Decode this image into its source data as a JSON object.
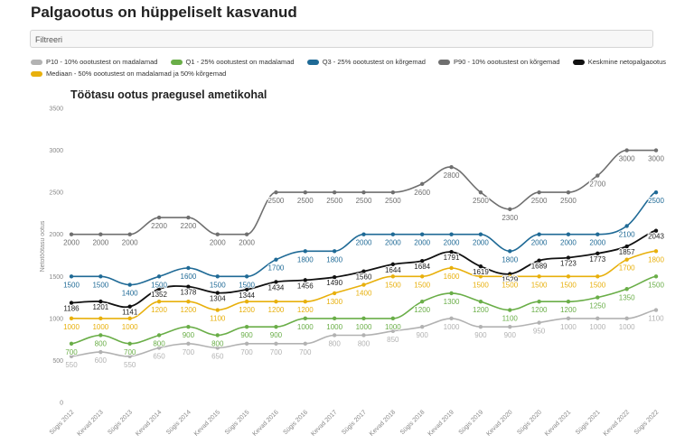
{
  "page": {
    "title": "Palgaootus on hüppeliselt kasvanud"
  },
  "filter": {
    "placeholder": "Filtreeri"
  },
  "chart_data": {
    "type": "line",
    "title": "Töötasu ootus praegusel ametikohal",
    "xlabel": "",
    "ylabel": "Netotöötasu ootus",
    "ylim": [
      0,
      3500
    ],
    "yticks": [
      0,
      500,
      1000,
      1500,
      2000,
      2500,
      3000,
      3500
    ],
    "grid": false,
    "legend_position": "top",
    "categories": [
      "Sügis 2012",
      "Kevad 2013",
      "Sügis 2013",
      "Kevad 2014",
      "Sügis 2014",
      "Kevad 2015",
      "Sügis 2015",
      "Kevad 2016",
      "Sügis 2016",
      "Kevad 2017",
      "Sügis 2017",
      "Kevad 2018",
      "Sügis 2018",
      "Kevad 2019",
      "Sügis 2019",
      "Kevad 2020",
      "Sügis 2020",
      "Kevad 2021",
      "Sügis 2021",
      "Kevad 2022",
      "Sügis 2022"
    ],
    "series": [
      {
        "name": "P10 - 10% oootustest on madalamad",
        "color": "#b2b2b2",
        "labels_below": true,
        "values": [
          550,
          600,
          550,
          650,
          700,
          650,
          700,
          700,
          700,
          800,
          800,
          850,
          900,
          1000,
          900,
          900,
          950,
          1000,
          1000,
          1000,
          1100
        ]
      },
      {
        "name": "Q1 - 25% oootustest on madalamad",
        "color": "#6aae48",
        "labels_below": true,
        "values": [
          700,
          800,
          700,
          800,
          900,
          800,
          900,
          900,
          1000,
          1000,
          1000,
          1000,
          1200,
          1300,
          1200,
          1100,
          1200,
          1200,
          1250,
          1350,
          1500
        ]
      },
      {
        "name": "Q3 - 25% oootustest on kõrgemad",
        "color": "#1f6a96",
        "labels_below": true,
        "values": [
          1500,
          1500,
          1400,
          1500,
          1600,
          1500,
          1500,
          1700,
          1800,
          1800,
          2000,
          2000,
          2000,
          2000,
          2000,
          1800,
          2000,
          2000,
          2000,
          2100,
          2500
        ]
      },
      {
        "name": "P90 - 10% oootustest on kõrgemad",
        "color": "#6f6f6f",
        "labels_below": true,
        "values": [
          2000,
          2000,
          2000,
          2200,
          2200,
          2000,
          2000,
          2500,
          2500,
          2500,
          2500,
          2500,
          2600,
          2800,
          2500,
          2300,
          2500,
          2500,
          2700,
          3000,
          3000
        ]
      },
      {
        "name": "Keskmine netopalgaootus",
        "color": "#111111",
        "labels_below": false,
        "values": [
          1186,
          1201,
          1141,
          1352,
          1378,
          1304,
          1344,
          1434,
          1456,
          1490,
          1560,
          1644,
          1684,
          1791,
          1619,
          1529,
          1689,
          1723,
          1773,
          1857,
          2043
        ]
      },
      {
        "name": "Mediaan - 50% oootustest on madalamad ja 50% kõrgemad",
        "color": "#e8b00c",
        "labels_below": true,
        "values": [
          1000,
          1000,
          1000,
          1200,
          1200,
          1100,
          1200,
          1200,
          1200,
          1300,
          1400,
          1500,
          1500,
          1600,
          1500,
          1500,
          1500,
          1500,
          1500,
          1700,
          1800
        ]
      }
    ]
  }
}
